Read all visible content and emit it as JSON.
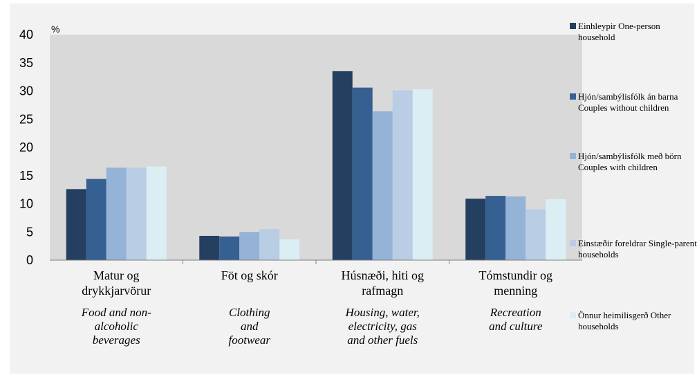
{
  "chart_data": {
    "type": "bar",
    "unit_label": "%",
    "ylim": [
      0,
      40
    ],
    "yticks": [
      0,
      5,
      10,
      15,
      20,
      25,
      30,
      35,
      40
    ],
    "grid": false,
    "legend_position": "right",
    "categories": [
      {
        "label_is": [
          "Matur og",
          "drykkjarvörur"
        ],
        "label_en": [
          "Food and non-",
          "alcoholic",
          "beverages"
        ]
      },
      {
        "label_is": [
          "Föt og skór"
        ],
        "label_en": [
          "Clothing",
          "and",
          "footwear"
        ]
      },
      {
        "label_is": [
          "Húsnæði, hiti og",
          "rafmagn"
        ],
        "label_en": [
          "Housing, water,",
          "electricity, gas",
          "and other fuels"
        ]
      },
      {
        "label_is": [
          "Tómstundir og",
          "menning"
        ],
        "label_en": [
          "Recreation",
          "and culture"
        ]
      }
    ],
    "series": [
      {
        "name": "Einhleypir  One-person household",
        "color": "#243f60",
        "values": [
          12.6,
          4.3,
          33.5,
          10.9
        ]
      },
      {
        "name": "Hjón/sambýlisfólk án barna Couples without children",
        "color": "#376092",
        "values": [
          14.4,
          4.2,
          30.6,
          11.4
        ]
      },
      {
        "name": "Hjón/sambýlisfólk með börn  Couples with children",
        "color": "#95b3d7",
        "values": [
          16.4,
          5.0,
          26.4,
          11.3
        ]
      },
      {
        "name": "Einstæðir foreldrar Single-parent households",
        "color": "#b9cde5",
        "values": [
          16.4,
          5.5,
          30.1,
          9.0
        ]
      },
      {
        "name": "Önnur heimilisgerð Other households",
        "color": "#dbeef4",
        "values": [
          16.6,
          3.7,
          30.3,
          10.8
        ]
      }
    ]
  }
}
